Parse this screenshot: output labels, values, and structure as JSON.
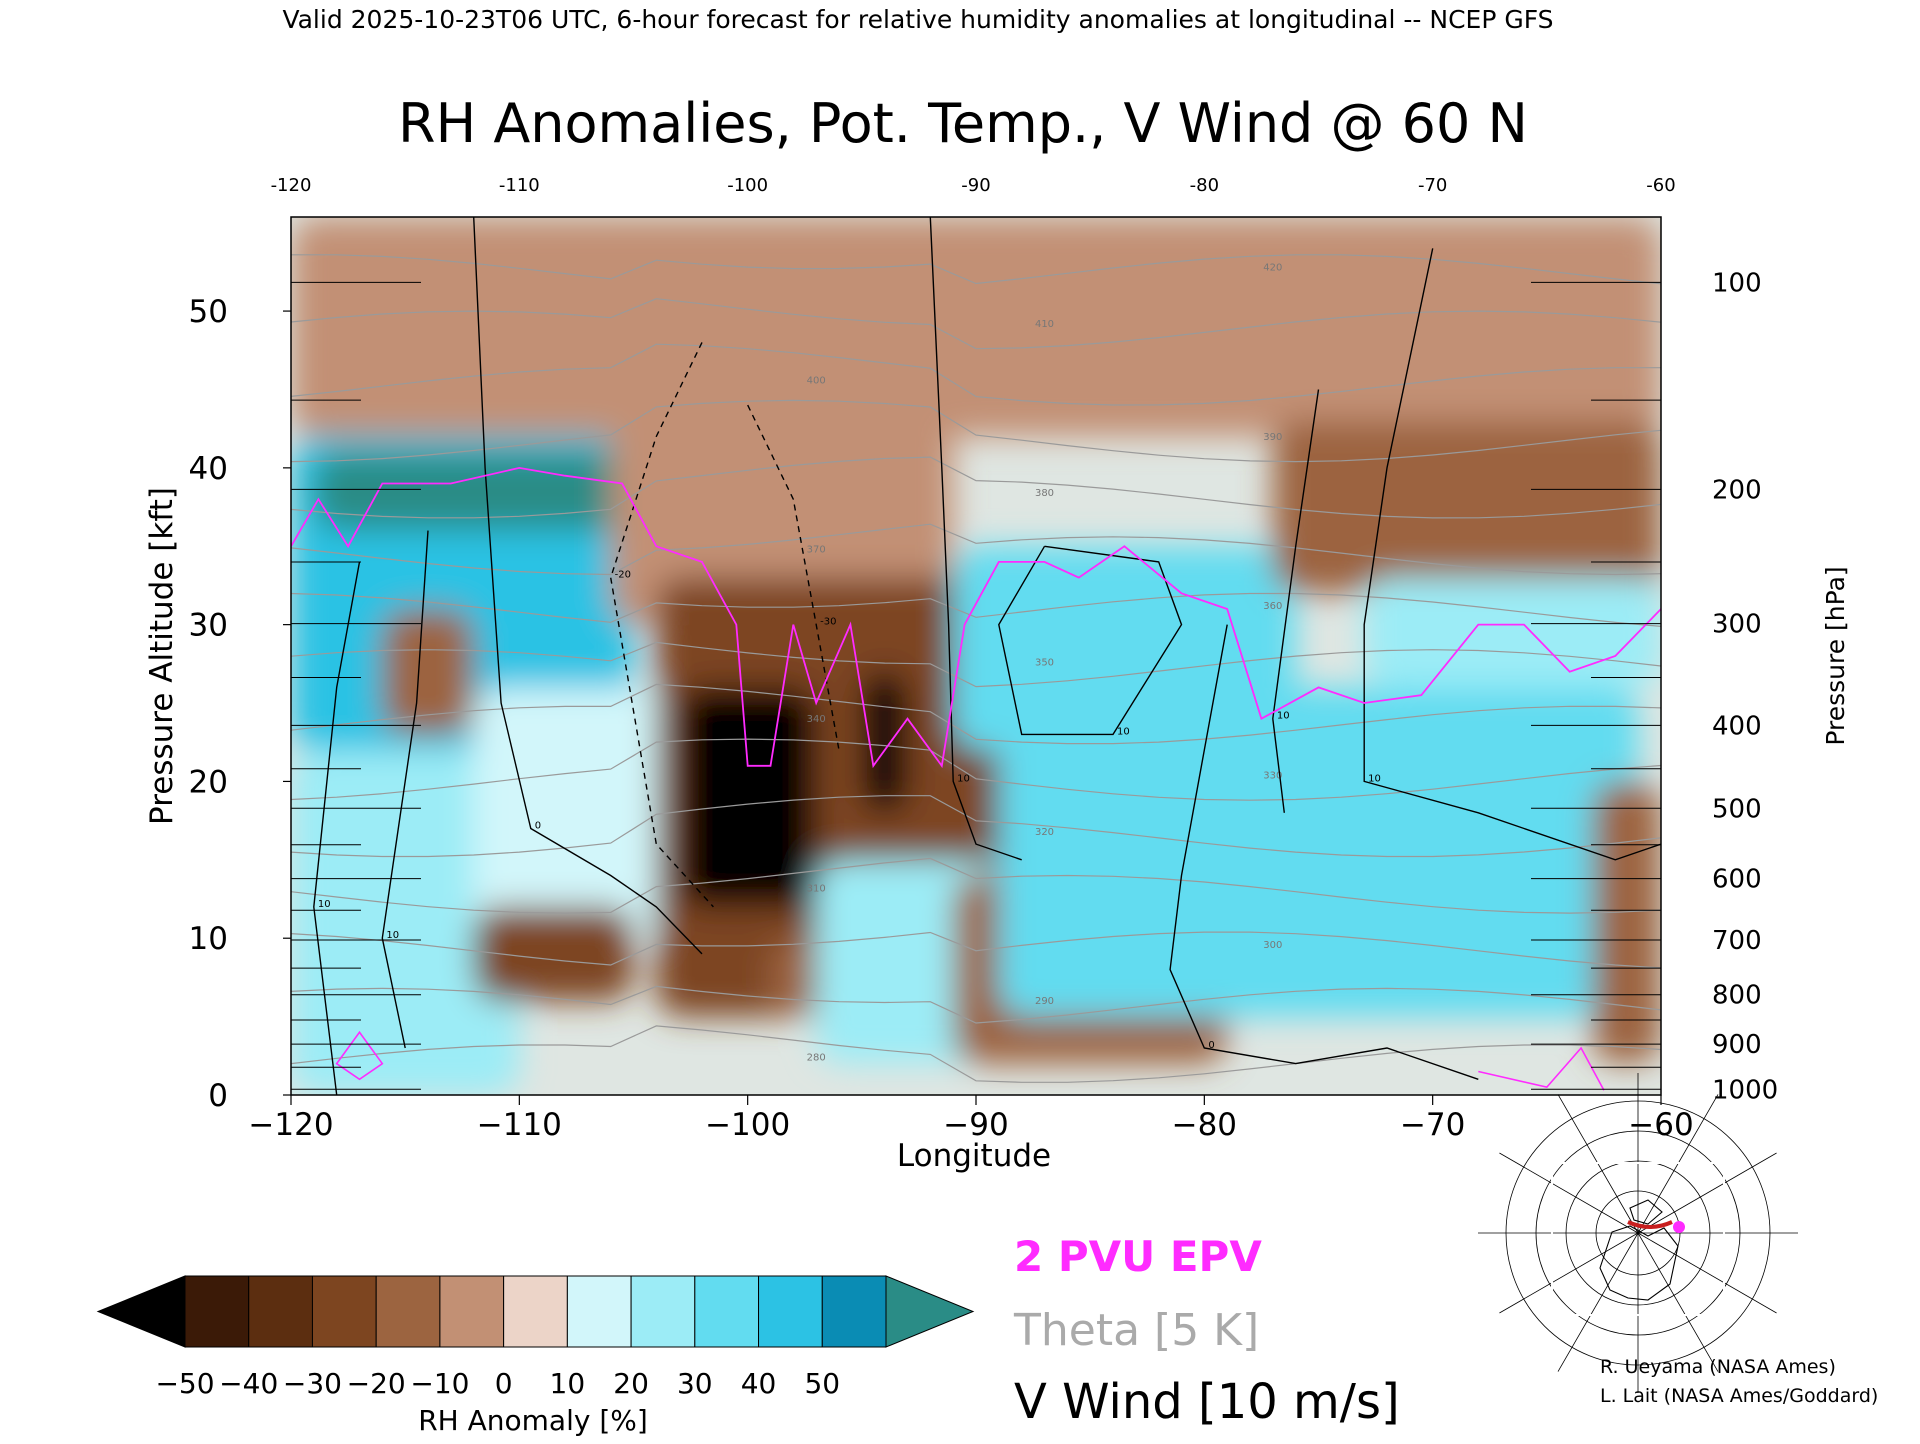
{
  "header": "Valid 2025-10-23T06 UTC, 6-hour forecast for relative humidity anomalies at longitudinal -- NCEP GFS",
  "chart_data": {
    "type": "heatmap",
    "title": "RH Anomalies, Pot. Temp., V Wind @ 60 N",
    "xlabel": "Longitude",
    "ylabel": "Pressure Altitude [kft]",
    "ylabel_right": "Pressure [hPa]",
    "xlim": [
      -120,
      -60
    ],
    "ylim": [
      0,
      56
    ],
    "x_ticks": [
      -120,
      -110,
      -100,
      -90,
      -80,
      -70,
      -60
    ],
    "x_tick_labels": [
      "−120",
      "−110",
      "−100",
      "−90",
      "−80",
      "−70",
      "−60"
    ],
    "x_tick_labels_top": [
      "-120",
      "-110",
      "-100",
      "-90",
      "-80",
      "-70",
      "-60"
    ],
    "y_ticks": [
      0,
      10,
      20,
      30,
      40,
      50
    ],
    "y_tick_labels": [
      "0",
      "10",
      "20",
      "30",
      "40",
      "50"
    ],
    "pressure_levels": [
      {
        "hPa": 100,
        "label": "100"
      },
      {
        "hPa": 200,
        "label": "200"
      },
      {
        "hPa": 300,
        "label": "300"
      },
      {
        "hPa": 400,
        "label": "400"
      },
      {
        "hPa": 500,
        "label": "500"
      },
      {
        "hPa": 600,
        "label": "600"
      },
      {
        "hPa": 700,
        "label": "700"
      },
      {
        "hPa": 800,
        "label": "800"
      },
      {
        "hPa": 900,
        "label": "900"
      },
      {
        "hPa": 1000,
        "label": "1000"
      }
    ],
    "colorbar": {
      "label": "RH Anomaly [%]",
      "levels": [
        -50,
        -40,
        -30,
        -20,
        -10,
        0,
        10,
        20,
        30,
        40,
        50
      ],
      "tick_labels": [
        "−50",
        "−40",
        "−30",
        "−20",
        "−10",
        "0",
        "10",
        "20",
        "30",
        "40",
        "50"
      ],
      "colors": [
        "#3b1a07",
        "#5c2e10",
        "#7d4520",
        "#9c6440",
        "#c29074",
        "#ecd4c8",
        "#d2f6fa",
        "#9cecf6",
        "#62dcf0",
        "#2cc2e4",
        "#0a8cb4"
      ],
      "under_color": "#000000",
      "over_color": "#2a8c86"
    },
    "legend": [
      {
        "label": "2 PVU EPV",
        "color": "#ff2bff"
      },
      {
        "label": "Theta [5 K]",
        "color": "#aaaaaa"
      },
      {
        "label": "V Wind [10 m/s]",
        "color": "#000000"
      }
    ],
    "theta_labels": [
      "280",
      "290",
      "300",
      "310",
      "320",
      "330",
      "340",
      "350",
      "360",
      "370",
      "380",
      "390",
      "400",
      "410",
      "420"
    ],
    "vwind_labels": [
      "10",
      "0",
      "-10",
      "-20",
      "-30"
    ],
    "background_color": "#dfe6e2"
  },
  "inset": {
    "description_color": "#c81e1e",
    "marker_color": "#ff2bff"
  },
  "credits": [
    "R. Ueyama (NASA Ames)",
    "L. Lait (NASA Ames/Goddard)"
  ]
}
